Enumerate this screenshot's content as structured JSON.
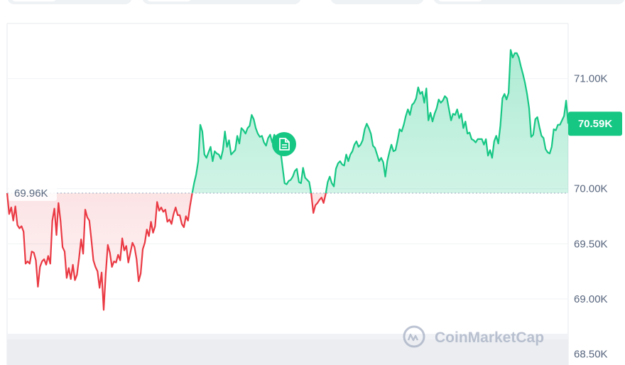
{
  "chart_data": {
    "type": "area",
    "y_axis_position": "right",
    "ylim": [
      68.4,
      71.5
    ],
    "y_ticks": [
      68.5,
      69.0,
      69.5,
      70.0,
      71.0
    ],
    "y_tick_labels": [
      "68.50K",
      "69.00K",
      "69.50K",
      "70.00K",
      "71.00K"
    ],
    "reference": {
      "value": 69.96,
      "label": "69.96K"
    },
    "current": {
      "value": 70.59,
      "label": "70.59K"
    },
    "series": [
      {
        "values": [
          69.96,
          69.77,
          69.83,
          69.71,
          69.84,
          69.67,
          69.64,
          69.66,
          69.61,
          69.32,
          69.34,
          69.32,
          69.43,
          69.42,
          69.35,
          69.11,
          69.29,
          69.34,
          69.36,
          69.31,
          69.39,
          69.32,
          69.71,
          69.82,
          69.58,
          69.87,
          69.71,
          69.47,
          69.43,
          69.19,
          69.28,
          69.18,
          69.31,
          69.17,
          69.22,
          69.37,
          69.54,
          69.41,
          69.81,
          69.74,
          69.71,
          69.54,
          69.35,
          69.29,
          69.25,
          69.1,
          69.24,
          68.9,
          69.23,
          69.49,
          69.42,
          69.29,
          69.34,
          69.33,
          69.4,
          69.35,
          69.55,
          69.44,
          69.48,
          69.33,
          69.42,
          69.51,
          69.47,
          69.36,
          69.16,
          69.23,
          69.45,
          69.51,
          69.63,
          69.57,
          69.7,
          69.6,
          69.66,
          69.88,
          69.8,
          69.83,
          69.79,
          69.81,
          69.7,
          69.72,
          69.68,
          69.77,
          69.83,
          69.76,
          69.76,
          69.68,
          69.65,
          69.75,
          69.71,
          69.84,
          69.95,
          70.05,
          70.13,
          70.25,
          70.58,
          70.52,
          70.31,
          70.28,
          70.33,
          70.38,
          70.25,
          70.34,
          70.32,
          70.31,
          70.27,
          70.35,
          70.52,
          70.38,
          70.44,
          70.31,
          70.33,
          70.35,
          70.48,
          70.41,
          70.55,
          70.53,
          70.5,
          70.55,
          70.57,
          70.67,
          70.63,
          70.55,
          70.5,
          70.47,
          70.48,
          70.42,
          70.39,
          70.46,
          70.49,
          70.42,
          70.49,
          70.46,
          70.45,
          70.35,
          70.2,
          70.05,
          70.04,
          70.07,
          70.08,
          70.11,
          70.16,
          70.18,
          70.06,
          70.05,
          70.19,
          70.1,
          70.08,
          70.06,
          69.95,
          69.78,
          69.85,
          69.87,
          69.9,
          69.92,
          69.87,
          69.95,
          70.06,
          70.11,
          70.05,
          70.02,
          70.18,
          70.23,
          70.25,
          70.22,
          70.21,
          70.31,
          70.25,
          70.31,
          70.34,
          70.4,
          70.43,
          70.38,
          70.4,
          70.44,
          70.54,
          70.59,
          70.55,
          70.5,
          70.39,
          70.37,
          70.31,
          70.25,
          70.28,
          70.24,
          70.11,
          70.25,
          70.33,
          70.4,
          70.34,
          70.35,
          70.44,
          70.54,
          70.52,
          70.58,
          70.66,
          70.72,
          70.67,
          70.76,
          70.78,
          70.82,
          70.92,
          70.86,
          70.88,
          70.78,
          70.91,
          70.62,
          70.69,
          70.61,
          70.68,
          70.73,
          70.81,
          70.78,
          70.8,
          70.84,
          70.82,
          70.72,
          70.62,
          70.68,
          70.67,
          70.72,
          70.64,
          70.68,
          70.55,
          70.61,
          70.5,
          70.51,
          70.45,
          70.44,
          70.42,
          70.45,
          70.45,
          70.45,
          70.4,
          70.45,
          70.3,
          70.35,
          70.28,
          70.43,
          70.48,
          70.41,
          70.57,
          70.82,
          70.86,
          70.81,
          70.87,
          71.26,
          71.19,
          71.23,
          71.23,
          71.19,
          71.11,
          71.04,
          70.96,
          70.86,
          70.73,
          70.47,
          70.49,
          70.63,
          70.65,
          70.56,
          70.48,
          70.46,
          70.36,
          70.33,
          70.32,
          70.38,
          70.54,
          70.53,
          70.58,
          70.58,
          70.62,
          70.66,
          70.8,
          70.59
        ]
      }
    ],
    "watermark": "CoinMarketCap"
  }
}
